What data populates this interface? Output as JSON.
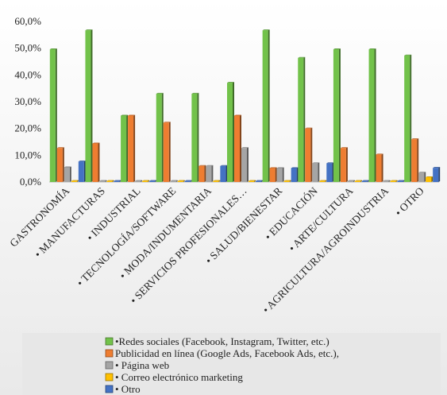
{
  "chart_data": {
    "type": "bar",
    "title": "",
    "xlabel": "",
    "ylabel": "",
    "ylim": [
      0,
      60
    ],
    "y_tick_labels": [
      "0,0%",
      "10,0%",
      "20,0%",
      "30,0%",
      "40,0%",
      "50,0%",
      "60,0%"
    ],
    "y_ticks": [
      0,
      10,
      20,
      30,
      40,
      50,
      60
    ],
    "grid": false,
    "legend_position": "bottom",
    "categories": [
      "GASTRONOMÍA",
      "• MANUFACTURAS",
      "• INDUSTRIAL",
      "• TECNOLOGÍA/SOFTWARE",
      "• MODA/INDUMENTARIA",
      "• SERVICIOS PROFESIONALES…",
      "• SALUD/BIENESTAR",
      "• EDUCACIÓN",
      "• ARTE/CULTURA",
      "• AGRICULTURA/AGROINDUSTRIA",
      "• OTRO"
    ],
    "series": [
      {
        "name": "•Redes sociales (Facebook, Instagram, Twitter, etc.)",
        "color": "#72c24a",
        "values": [
          49.6,
          56.7,
          24.8,
          33.0,
          33.0,
          37.1,
          56.7,
          46.4,
          49.6,
          49.6,
          47.3
        ]
      },
      {
        "name": "Publicidad en línea (Google Ads, Facebook Ads, etc.),",
        "color": "#ee7d31",
        "values": [
          12.7,
          14.4,
          24.8,
          22.2,
          6.0,
          24.8,
          5.2,
          20.0,
          12.7,
          10.3,
          16.0
        ]
      },
      {
        "name": "• Página web",
        "color": "#a5a5a5",
        "values": [
          5.5,
          0.4,
          0.4,
          0.4,
          6.0,
          12.7,
          5.2,
          7.0,
          0.4,
          0.4,
          3.5
        ]
      },
      {
        "name": "• Correo electrónico marketing",
        "color": "#ffc000",
        "values": [
          0.4,
          0.4,
          0.4,
          0.4,
          0.4,
          0.4,
          0.4,
          0.4,
          0.4,
          0.4,
          1.8
        ]
      },
      {
        "name": "• Otro",
        "color": "#4472c4",
        "values": [
          7.7,
          0.4,
          0.4,
          0.4,
          6.0,
          0.4,
          5.2,
          7.0,
          0.4,
          0.4,
          5.3
        ]
      }
    ]
  }
}
